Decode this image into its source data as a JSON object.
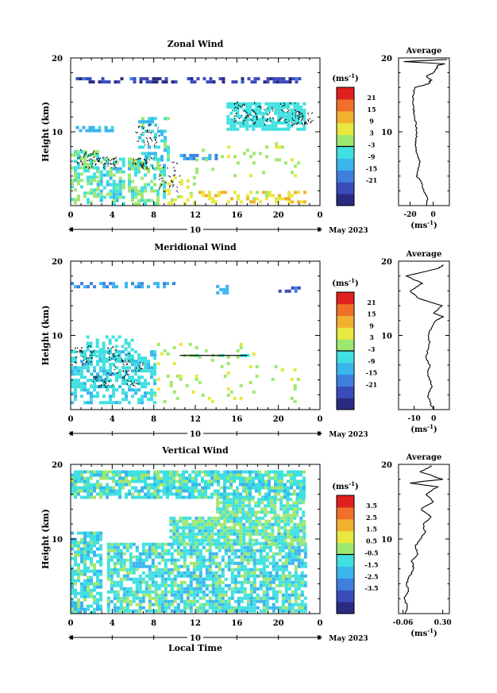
{
  "chart_data": [
    {
      "type": "heatmap",
      "title": "Zonal Wind",
      "ylabel": "Height (km)",
      "ylim": [
        0,
        20
      ],
      "yticks": [
        "20",
        "10"
      ],
      "xlim": [
        0,
        24
      ],
      "xticks": [
        "0",
        "4",
        "8",
        "12",
        "16",
        "20",
        "0"
      ],
      "date_label": "10",
      "month_label": "May 2023",
      "colorbar": {
        "unit": "(ms",
        "unit_exp": "-1",
        "unit_close": ")",
        "ticks": [
          "21",
          "15",
          "9",
          "3",
          "-3",
          "-9",
          "-15",
          "-21"
        ],
        "range": [
          -24,
          24
        ]
      },
      "profile": {
        "title": "Average",
        "xticks": [
          "-20",
          "0"
        ],
        "xlim": [
          -30,
          14
        ],
        "unit": "(ms",
        "unit_exp": "-1",
        "unit_close": ")",
        "yticks": [
          "20",
          "10"
        ],
        "points": [
          [
            -6,
            0
          ],
          [
            -5,
            1
          ],
          [
            -8,
            2
          ],
          [
            -10,
            3
          ],
          [
            -14,
            4
          ],
          [
            -13,
            5
          ],
          [
            -12,
            6
          ],
          [
            -14,
            7
          ],
          [
            -15,
            8
          ],
          [
            -15,
            9
          ],
          [
            -14,
            10
          ],
          [
            -15,
            11
          ],
          [
            -16,
            12
          ],
          [
            -17,
            13
          ],
          [
            -18,
            14
          ],
          [
            -17,
            15
          ],
          [
            -16,
            16
          ],
          [
            -4,
            16.5
          ],
          [
            -2,
            17
          ],
          [
            -6,
            17.5
          ],
          [
            0,
            18
          ],
          [
            3,
            18.5
          ],
          [
            4,
            19
          ],
          [
            10,
            19.2
          ],
          [
            -25,
            19.5
          ],
          [
            12,
            19.8
          ]
        ]
      }
    },
    {
      "type": "heatmap",
      "title": "Meridional Wind",
      "ylabel": "Height (km)",
      "ylim": [
        0,
        20
      ],
      "yticks": [
        "20",
        "10"
      ],
      "xlim": [
        0,
        24
      ],
      "xticks": [
        "0",
        "4",
        "8",
        "12",
        "16",
        "20",
        "0"
      ],
      "date_label": "10",
      "month_label": "May 2023",
      "colorbar": {
        "unit": "(ms",
        "unit_exp": "-1",
        "unit_close": ")",
        "ticks": [
          "21",
          "15",
          "9",
          "3",
          "-3",
          "-9",
          "-15",
          "-21"
        ],
        "range": [
          -24,
          24
        ]
      },
      "profile": {
        "title": "Average",
        "xticks": [
          "-10",
          "0"
        ],
        "xlim": [
          -18,
          8
        ],
        "unit": "(ms",
        "unit_exp": "-1",
        "unit_close": ")",
        "yticks": [
          "20",
          "10"
        ],
        "points": [
          [
            0,
            0
          ],
          [
            -2,
            1
          ],
          [
            -3,
            2
          ],
          [
            -1,
            3
          ],
          [
            -2,
            4
          ],
          [
            -3,
            5
          ],
          [
            -2,
            6
          ],
          [
            -4,
            7
          ],
          [
            -3,
            8
          ],
          [
            -2,
            9
          ],
          [
            -3,
            10
          ],
          [
            -1,
            11
          ],
          [
            1,
            12
          ],
          [
            5,
            12.5
          ],
          [
            0,
            13
          ],
          [
            4,
            14
          ],
          [
            -8,
            15
          ],
          [
            -12,
            16
          ],
          [
            -6,
            17
          ],
          [
            -14,
            18
          ],
          [
            2,
            19
          ],
          [
            5,
            19.5
          ]
        ]
      }
    },
    {
      "type": "heatmap",
      "title": "Vertical Wind",
      "ylabel": "Height (km)",
      "xlabel": "Local Time",
      "ylim": [
        0,
        20
      ],
      "yticks": [
        "20",
        "10"
      ],
      "xlim": [
        0,
        24
      ],
      "xticks": [
        "0",
        "4",
        "8",
        "12",
        "16",
        "20",
        "0"
      ],
      "date_label": "10",
      "month_label": "May 2023",
      "colorbar": {
        "unit": "(ms",
        "unit_exp": "-1",
        "unit_close": ")",
        "ticks": [
          "3.5",
          "2.5",
          "1.5",
          "0.5",
          "-0.5",
          "-1.5",
          "-2.5",
          "-3.5"
        ],
        "range": [
          -4,
          4
        ]
      },
      "profile": {
        "title": "Average",
        "xticks": [
          "-0.06",
          "0.30"
        ],
        "xlim": [
          -0.1,
          0.36
        ],
        "unit": "(ms",
        "unit_exp": "-1",
        "unit_close": ")",
        "yticks": [
          "20",
          "10"
        ],
        "points": [
          [
            -0.04,
            0
          ],
          [
            -0.02,
            1
          ],
          [
            -0.05,
            2
          ],
          [
            -0.01,
            3
          ],
          [
            -0.03,
            4
          ],
          [
            0.0,
            5
          ],
          [
            0.04,
            6
          ],
          [
            0.02,
            7
          ],
          [
            0.08,
            8
          ],
          [
            0.05,
            9
          ],
          [
            0.1,
            10
          ],
          [
            0.14,
            11
          ],
          [
            0.12,
            12
          ],
          [
            0.2,
            13
          ],
          [
            0.1,
            14
          ],
          [
            0.22,
            15
          ],
          [
            0.15,
            16
          ],
          [
            0.25,
            17
          ],
          [
            0.0,
            17.5
          ],
          [
            0.3,
            18
          ],
          [
            0.1,
            19
          ],
          [
            0.2,
            19.8
          ]
        ]
      }
    }
  ]
}
